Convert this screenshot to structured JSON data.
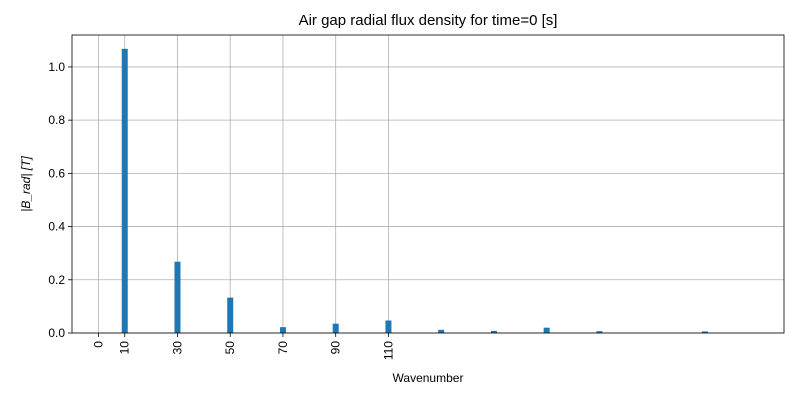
{
  "chart_data": {
    "type": "bar",
    "title": "Air gap radial flux density for time=0 [s]",
    "xlabel": "Wavenumber",
    "ylabel": "|B_rad| [T]",
    "xlim": [
      -10,
      260
    ],
    "ylim": [
      0,
      1.12
    ],
    "xticks": [
      0,
      10,
      30,
      50,
      70,
      90,
      110
    ],
    "xtick_labels": [
      "0",
      "10",
      "30",
      "50",
      "70",
      "90",
      "110"
    ],
    "yticks": [
      0.0,
      0.2,
      0.4,
      0.6,
      0.8,
      1.0
    ],
    "ytick_labels": [
      "0.0",
      "0.2",
      "0.4",
      "0.6",
      "0.8",
      "1.0"
    ],
    "grid": true,
    "bar_color": "#1f77b4",
    "x": [
      10,
      30,
      50,
      70,
      90,
      110,
      130,
      150,
      170,
      190,
      230
    ],
    "values": [
      1.068,
      0.268,
      0.133,
      0.022,
      0.035,
      0.047,
      0.012,
      0.008,
      0.02,
      0.007,
      0.006
    ]
  }
}
